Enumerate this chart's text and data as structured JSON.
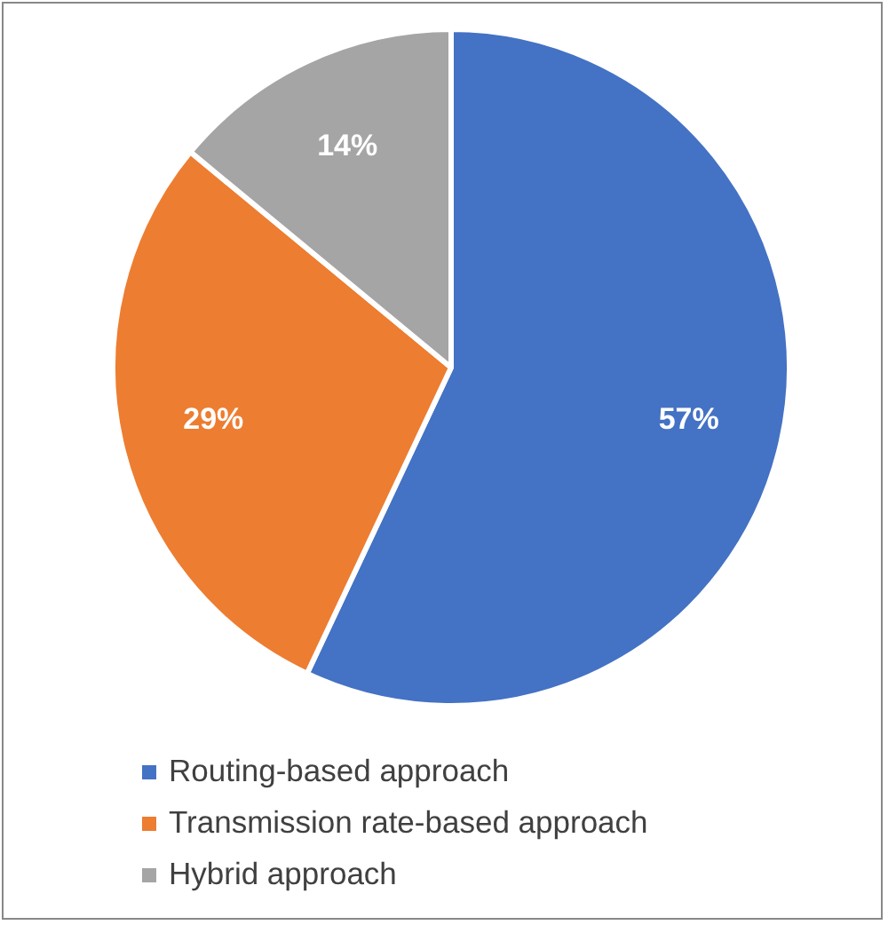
{
  "chart_data": {
    "type": "pie",
    "categories": [
      "Routing-based approach",
      "Transmission rate-based approach",
      "Hybrid approach"
    ],
    "values": [
      57,
      29,
      14
    ],
    "colors": [
      "#4472c4",
      "#ed7d31",
      "#a5a5a5"
    ],
    "value_labels": [
      "57%",
      "29%",
      "14%"
    ],
    "legend": "bottom left"
  }
}
